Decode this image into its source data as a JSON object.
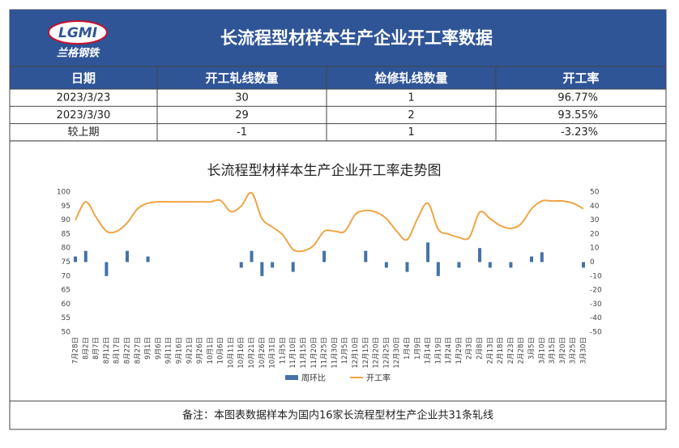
{
  "header": {
    "logo_text": "LGMI",
    "logo_subtitle": "兰格钢铁",
    "title": "长流程型材样本生产企业开工率数据"
  },
  "table": {
    "columns": [
      "日期",
      "开工轧线数量",
      "检修轧线数量",
      "开工率"
    ],
    "rows": [
      [
        "2023/3/23",
        "30",
        "1",
        "96.77%"
      ],
      [
        "2023/3/30",
        "29",
        "2",
        "93.55%"
      ],
      [
        "较上期",
        "-1",
        "1",
        "-3.23%"
      ]
    ]
  },
  "chart_data": {
    "type": "bar_line",
    "title": "长流程型材样本生产企业开工率走势图",
    "categories": [
      "7月28日",
      "8月2日",
      "8月7日",
      "8月12日",
      "8月17日",
      "8月22日",
      "8月27日",
      "9月1日",
      "9月6日",
      "9月11日",
      "9月16日",
      "9月21日",
      "9月26日",
      "10月1日",
      "10月6日",
      "10月11日",
      "10月16日",
      "10月21日",
      "10月26日",
      "10月31日",
      "11月5日",
      "11月10日",
      "11月15日",
      "11月20日",
      "11月25日",
      "11月30日",
      "12月5日",
      "12月10日",
      "12月15日",
      "12月20日",
      "12月25日",
      "12月30日",
      "1月4日",
      "1月9日",
      "1月14日",
      "1月19日",
      "1月24日",
      "1月29日",
      "2月3日",
      "2月8日",
      "2月13日",
      "2月18日",
      "2月23日",
      "2月28日",
      "3月5日",
      "3月10日",
      "3月15日",
      "3月20日",
      "3月25日",
      "3月30日"
    ],
    "series": [
      {
        "name": "周环比",
        "color": "#4472a8",
        "axis": "y2",
        "values": [
          4,
          8,
          0,
          -10,
          0,
          8,
          0,
          4,
          0,
          0,
          0,
          0,
          0,
          0,
          0,
          0,
          -4,
          8,
          -10,
          -4,
          0,
          -7,
          0,
          0,
          8,
          0,
          0,
          0,
          8,
          0,
          -4,
          0,
          -7,
          0,
          14,
          -10,
          0,
          -4,
          0,
          10,
          -4,
          0,
          -4,
          0,
          4,
          7,
          0,
          0,
          0,
          -4
        ]
      },
      {
        "name": "开工率",
        "color": "#f0a445",
        "values": [
          90,
          96.5,
          91,
          86,
          86,
          89,
          94,
          96,
          96.5,
          96.5,
          96.5,
          96.5,
          96.5,
          96.5,
          97,
          93,
          95,
          99.7,
          90.5,
          87.5,
          84.7,
          79.5,
          79,
          81,
          86,
          86,
          86,
          92,
          93.4,
          92.8,
          90.5,
          86,
          83,
          90.5,
          96,
          86.7,
          85,
          83.8,
          83.8,
          92.8,
          90.5,
          88,
          87,
          88.7,
          94,
          96.8,
          96.8,
          96.8,
          96,
          94
        ]
      }
    ],
    "ylim": [
      50,
      100
    ],
    "yticks": [
      50,
      55,
      60,
      65,
      70,
      75,
      80,
      85,
      90,
      95,
      100
    ],
    "y2lim": [
      -50,
      50
    ],
    "y2ticks": [
      -50,
      -40,
      -30,
      -20,
      -10,
      0,
      10,
      20,
      30,
      40,
      50
    ],
    "grid": false,
    "legend": "bottom"
  },
  "note": "备注：本图表数据样本为国内16家长流程型材生产企业共31条轧线"
}
